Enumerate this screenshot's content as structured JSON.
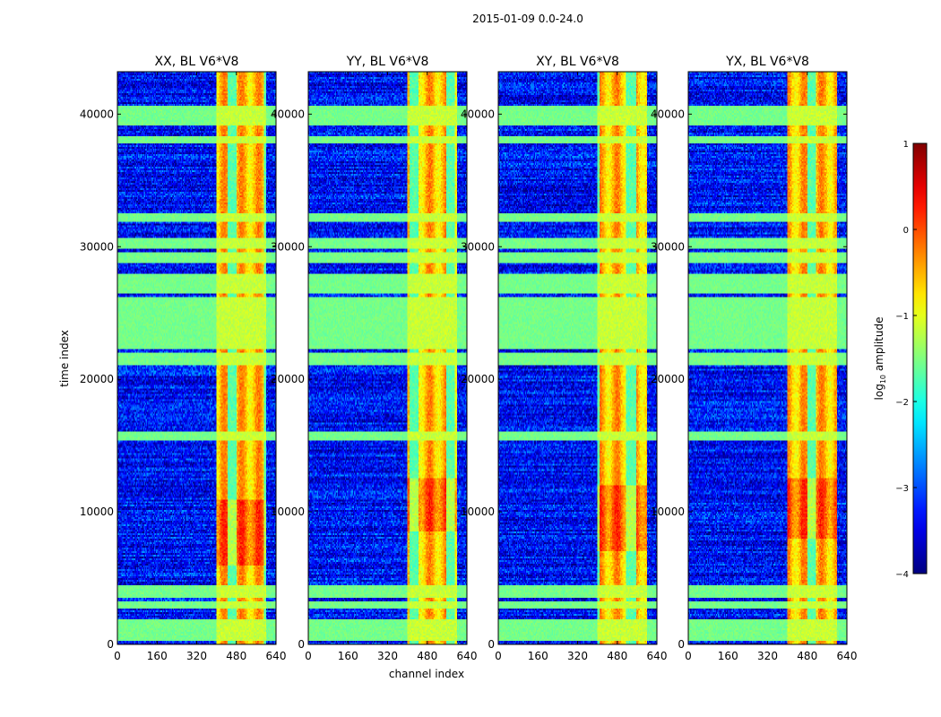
{
  "chart_data": {
    "type": "heatmap",
    "title": "2015-01-09 0.0-24.0",
    "xlabel": "channel index",
    "ylabel": "time index",
    "xlim": [
      0,
      640
    ],
    "ylim": [
      0,
      43200
    ],
    "x_ticks": [
      0,
      160,
      320,
      480,
      640
    ],
    "y_ticks": [
      0,
      10000,
      20000,
      30000,
      40000
    ],
    "panels": [
      {
        "title": "XX, BL V6*V8",
        "strong_band": [
          400,
          600
        ],
        "peak_time": [
          6000,
          11000
        ]
      },
      {
        "title": "YY, BL V6*V8",
        "strong_band": [
          400,
          600
        ],
        "peak_time": [
          8500,
          12500
        ]
      },
      {
        "title": "XY, BL V6*V8",
        "strong_band": [
          400,
          600
        ],
        "peak_time": [
          7000,
          12000
        ]
      },
      {
        "title": "YX, BL V6*V8",
        "strong_band": [
          400,
          600
        ],
        "peak_time": [
          8000,
          12500
        ]
      }
    ],
    "flagged_time_bands": [
      [
        300,
        1900
      ],
      [
        2700,
        3300
      ],
      [
        3500,
        4500
      ],
      [
        15400,
        16100
      ],
      [
        21000,
        22000
      ],
      [
        22300,
        26200
      ],
      [
        26500,
        28000
      ],
      [
        28700,
        29600
      ],
      [
        29900,
        30600
      ],
      [
        31800,
        32600
      ],
      [
        37800,
        38300
      ],
      [
        39100,
        40600
      ]
    ],
    "colorbar": {
      "label_prefix": "log",
      "label_sub": "10",
      "label_suffix": " amplitude",
      "range": [
        -4,
        1
      ],
      "ticks": [
        -4,
        -3,
        -2,
        -1,
        0,
        1
      ],
      "tick_labels": [
        "−4",
        "−3",
        "−2",
        "−1",
        "0",
        "1"
      ],
      "colormap": "jet"
    }
  }
}
